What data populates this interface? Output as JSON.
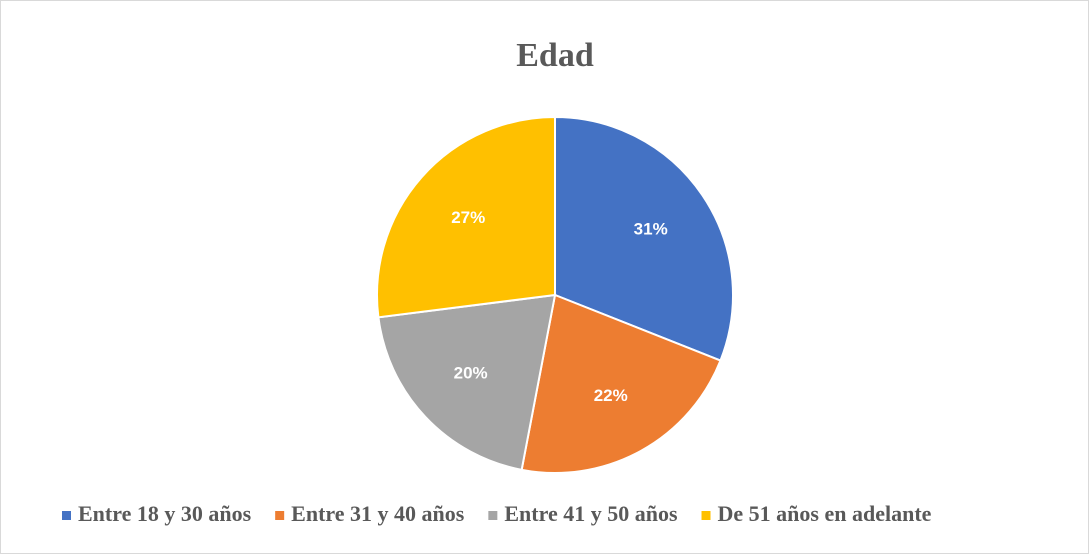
{
  "chart_data": {
    "type": "pie",
    "title": "Edad",
    "categories": [
      "Entre 18 y 30 años",
      "Entre 31 y 40 años",
      "Entre 41 y 50 años",
      "De 51 años en adelante"
    ],
    "values": [
      31,
      22,
      20,
      27
    ],
    "value_labels": [
      "31%",
      "22%",
      "20%",
      "27%"
    ],
    "colors": [
      "#4472c4",
      "#ed7d31",
      "#a5a5a5",
      "#ffc000"
    ],
    "legend": "bottom"
  }
}
